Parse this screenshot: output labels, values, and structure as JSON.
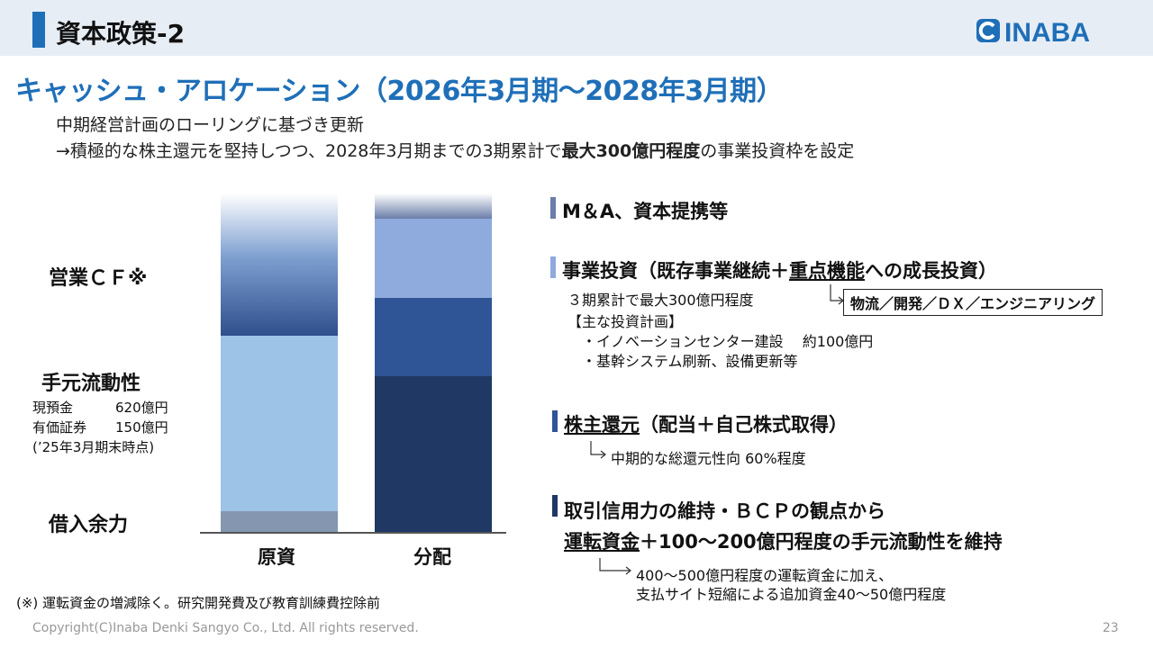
{
  "header": {
    "title": "資本政策-2",
    "logo_text": "INABA"
  },
  "heading": "キャッシュ・アロケーション（2026年3月期～2028年3月期）",
  "lead": {
    "line1": "中期経営計画のローリングに基づき更新",
    "line2_pre": "→積極的な株主還元を堅持しつつ、2028年3月期までの3期累計で",
    "line2_bold": "最大300億円程度",
    "line2_post": "の事業投資枠を設定"
  },
  "chart_data": {
    "type": "bar",
    "stacked": true,
    "categories": [
      "原資",
      "分配"
    ],
    "series": [
      {
        "name": "借入余力",
        "color": "#8496b0"
      },
      {
        "name": "手元流動性",
        "color": "#9dc3e6"
      },
      {
        "name": "営業ＣＦ",
        "color": "#3a5a94"
      },
      {
        "name": "運転資金＋100～200億円程度の手元流動性を維持",
        "color": "#1f3864"
      },
      {
        "name": "株主還元",
        "color": "#2f5597"
      },
      {
        "name": "事業投資",
        "color": "#8faadc"
      },
      {
        "name": "M＆A、資本提携等",
        "color": "#6a7ea8"
      }
    ]
  },
  "left_labels": {
    "operating_cf": "営業ＣＦ※",
    "liquidity_title": "手元流動性",
    "cash_label": "現預金",
    "cash_value": "620億円",
    "securities_label": "有価証券",
    "securities_value": "150億円",
    "as_of": "(’25年3月期末時点)",
    "borrowing": "借入余力"
  },
  "sections": {
    "ma": {
      "title": "M＆A、資本提携等",
      "color": "#6a7ea8"
    },
    "invest": {
      "title_pre": "事業投資（既存事業継続＋",
      "title_u": "重点機能",
      "title_post": "への成長投資）",
      "color": "#8faadc",
      "line1": "３期累計で最大300億円程度",
      "line2": "【主な投資計画】",
      "line3": "・イノベーションセンター建設　 約100億円",
      "line4": "・基幹システム刷新、設備更新等",
      "callout": "物流／開発／ＤＸ／エンジニアリング"
    },
    "returns": {
      "title_u": "株主還元",
      "title_post": "（配当＋自己株式取得）",
      "color": "#2f5597",
      "detail": "中期的な総還元性向 60%程度"
    },
    "credit": {
      "title": "取引信用力の維持・ＢＣＰの観点から",
      "line2_u": "運転資金",
      "line2_post": "＋100～200億円程度の手元流動性を維持",
      "color": "#1f3864",
      "detail1": "400～500億円程度の運転資金に加え、",
      "detail2": "支払サイト短縮による追加資金40～50億円程度"
    }
  },
  "footnote": "(※) 運転資金の増減除く。研究開発費及び教育訓練費控除前",
  "footer": {
    "copyright": "Copyright(C)Inaba Denki Sangyo Co., Ltd. All rights reserved.",
    "page": "23"
  }
}
